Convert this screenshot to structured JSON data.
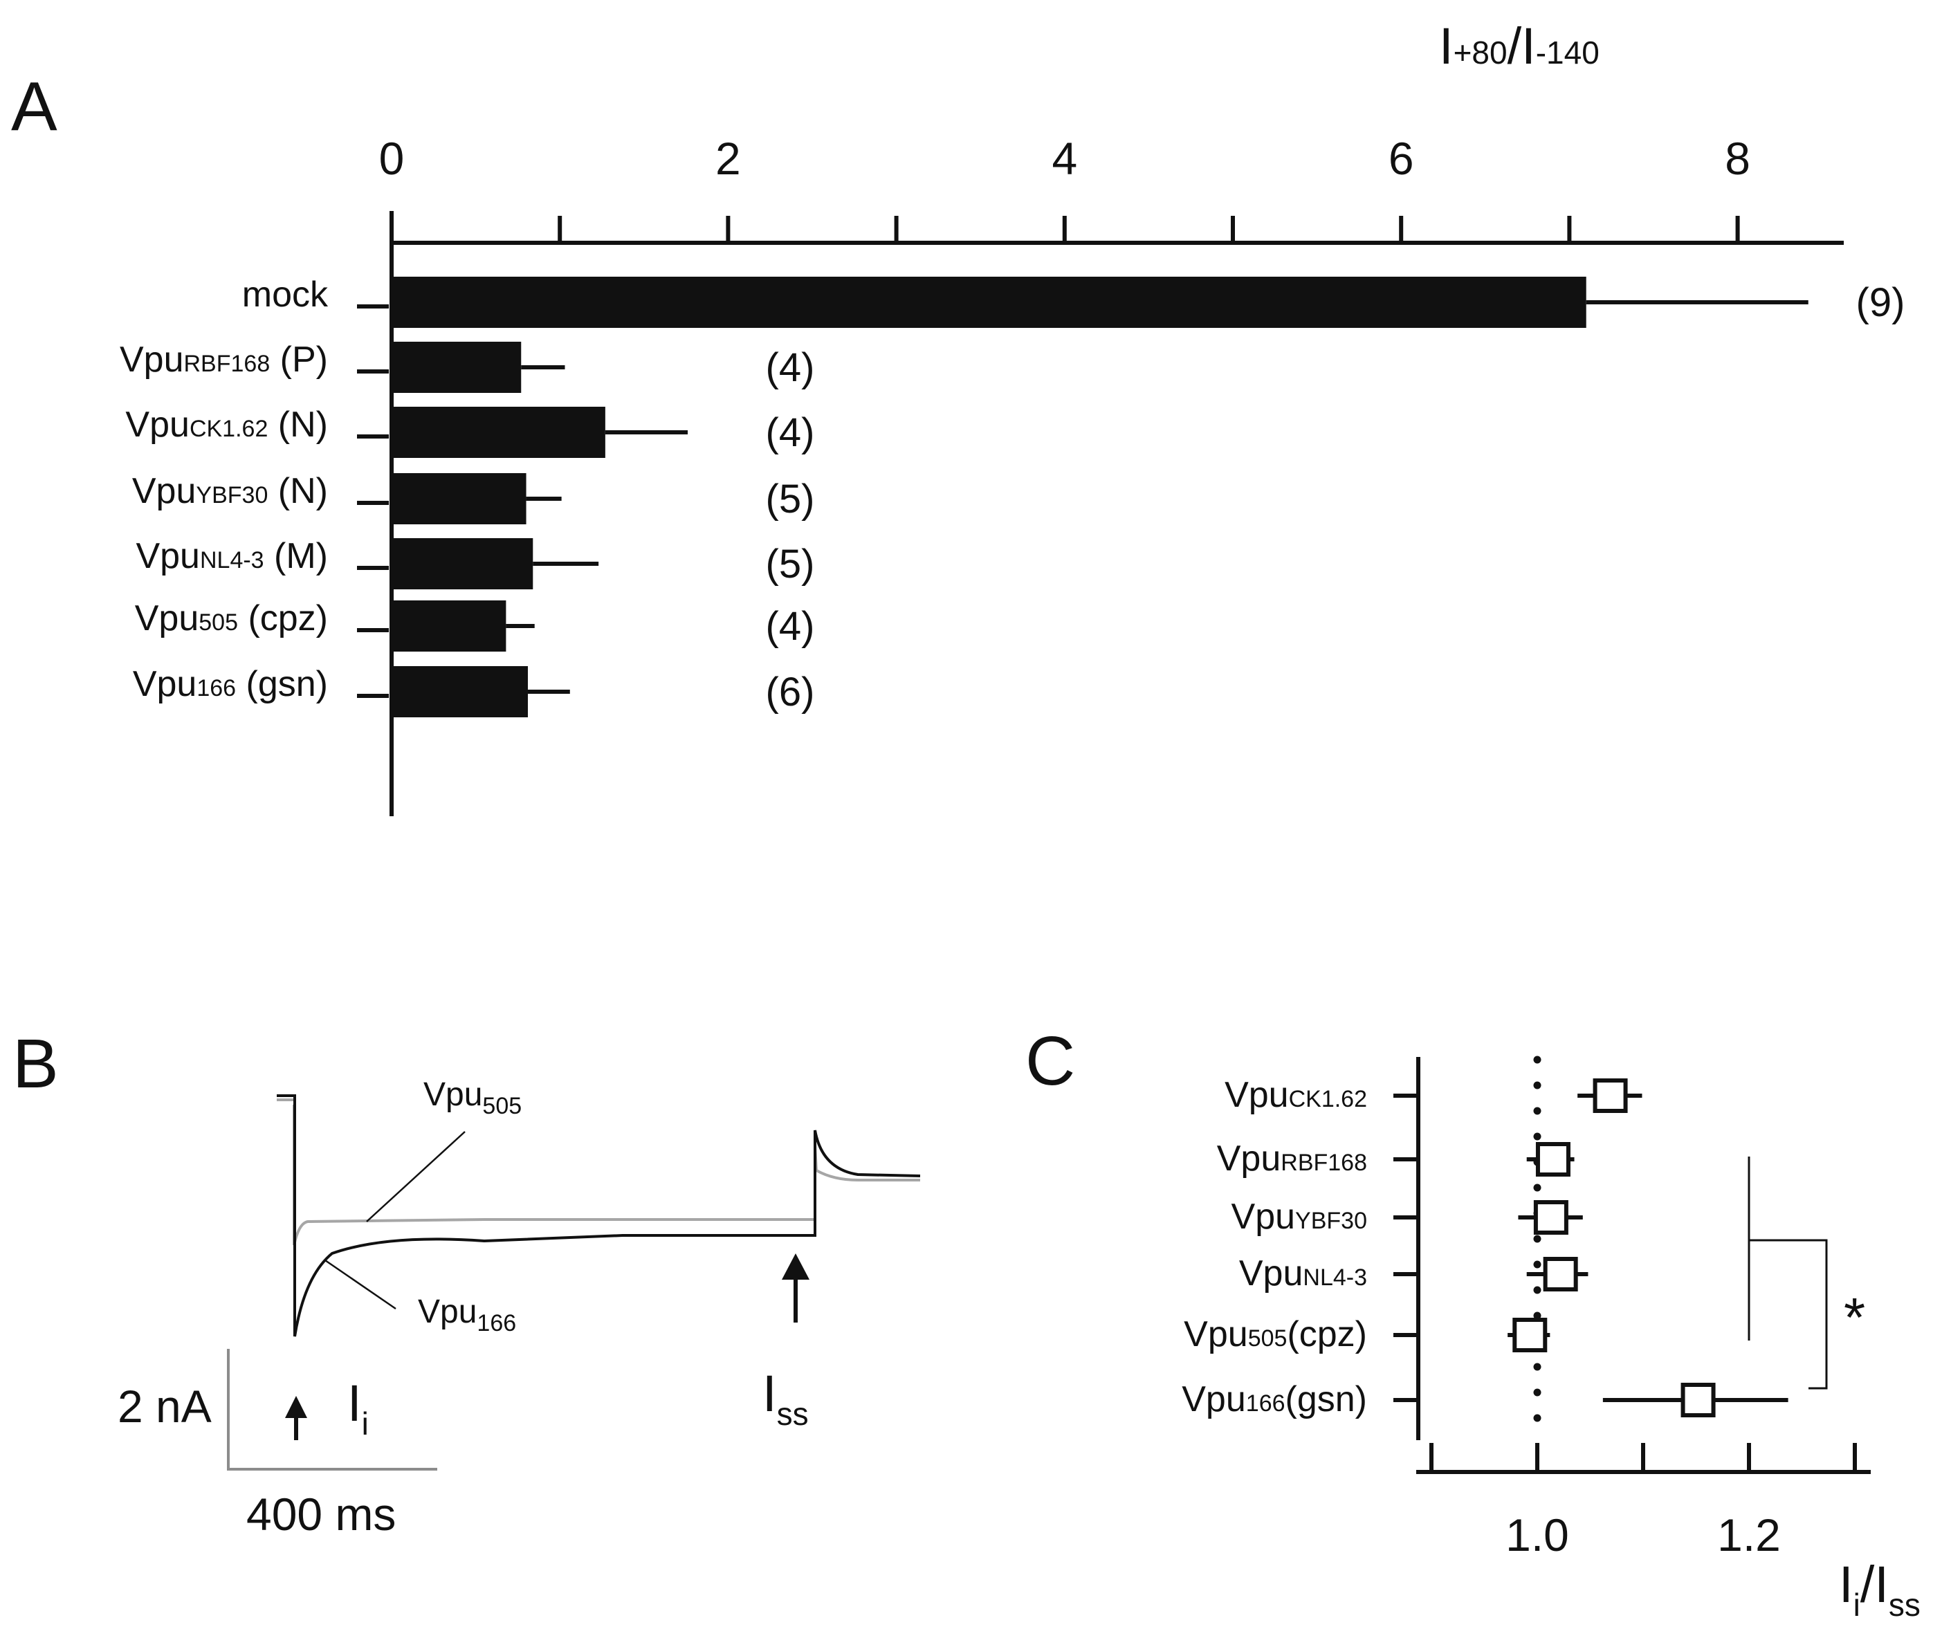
{
  "panels": {
    "A": "A",
    "B": "B",
    "C": "C"
  },
  "colors": {
    "ink": "#111111",
    "grey_trace": "#a6a6a6"
  },
  "chart_data": [
    {
      "panel": "A",
      "type": "bar",
      "orientation": "horizontal",
      "x_axis_position": "top",
      "xlabel": {
        "base": "I",
        "num": "+80",
        "sep": "/I",
        "den": "-140"
      },
      "xlim": [
        0,
        8.5
      ],
      "x_ticks": [
        0,
        1,
        2,
        3,
        4,
        5,
        6,
        7,
        8
      ],
      "x_tick_labels": [
        {
          "value": 0,
          "label": "0"
        },
        {
          "value": 2,
          "label": "2"
        },
        {
          "value": 4,
          "label": "4"
        },
        {
          "value": 6,
          "label": "6"
        },
        {
          "value": 8,
          "label": "8"
        }
      ],
      "categories": [
        {
          "name": "mock",
          "sub": "",
          "group": ""
        },
        {
          "name": "Vpu",
          "sub": "RBF168",
          "group": " (P)"
        },
        {
          "name": "Vpu",
          "sub": "CK1.62",
          "group": " (N)"
        },
        {
          "name": "Vpu",
          "sub": "YBF30",
          "group": " (N)"
        },
        {
          "name": "Vpu",
          "sub": "NL4-3",
          "group": " (M)"
        },
        {
          "name": "Vpu",
          "sub": "505",
          "group": " (cpz)"
        },
        {
          "name": "Vpu",
          "sub": "166",
          "group": " (gsn)"
        }
      ],
      "values": [
        7.1,
        0.77,
        1.27,
        0.8,
        0.84,
        0.68,
        0.81
      ],
      "error_upper": [
        8.42,
        1.03,
        1.76,
        1.01,
        1.23,
        0.85,
        1.06
      ],
      "n_labels": [
        "(9)",
        "(4)",
        "(4)",
        "(5)",
        "(5)",
        "(4)",
        "(6)"
      ],
      "bar_color": "#111111"
    },
    {
      "panel": "B",
      "type": "line",
      "description_free": true,
      "series": [
        {
          "name": "Vpu",
          "sub": "505",
          "color": "#a6a6a6",
          "i_peak": 2.35,
          "i_ss": 2.0
        },
        {
          "name": "Vpu",
          "sub": "166",
          "color": "#111111",
          "i_peak": 6.25,
          "i_ss": 2.0
        }
      ],
      "time_ms": [
        0,
        100,
        200,
        300,
        400,
        600,
        800,
        1000,
        1400,
        1800,
        2000,
        2200,
        2300,
        2400,
        2500
      ],
      "scale_bar": {
        "current": "2 nA",
        "time": "400 ms"
      },
      "markers": [
        {
          "base": "I",
          "sub": "i"
        },
        {
          "base": "I",
          "sub": "ss"
        }
      ]
    },
    {
      "panel": "C",
      "type": "scatter",
      "xlabel": {
        "base": "I",
        "sub1": "i",
        "sep": "/I",
        "sub2": "ss"
      },
      "xlim": [
        0.88,
        1.31
      ],
      "x_ticks": [
        0.9,
        1.0,
        1.1,
        1.2,
        1.3
      ],
      "x_tick_labels": [
        {
          "value": 1.0,
          "label": "1.0"
        },
        {
          "value": 1.2,
          "label": "1.2"
        }
      ],
      "reference_line": 1.0,
      "categories": [
        {
          "name": "Vpu",
          "sub": "CK1.62",
          "group": ""
        },
        {
          "name": "Vpu",
          "sub": "RBF168",
          "group": ""
        },
        {
          "name": "Vpu",
          "sub": "YBF30",
          "group": ""
        },
        {
          "name": "Vpu",
          "sub": "NL4-3",
          "group": ""
        },
        {
          "name": "Vpu",
          "sub": "505",
          "group": "(cpz)"
        },
        {
          "name": "Vpu",
          "sub": "166",
          "group": "(gsn)"
        }
      ],
      "values": [
        1.069,
        1.015,
        1.013,
        1.022,
        0.993,
        1.152
      ],
      "error_low": [
        1.038,
        0.99,
        0.982,
        0.99,
        0.972,
        1.062
      ],
      "error_high": [
        1.099,
        1.035,
        1.043,
        1.048,
        1.012,
        1.237
      ],
      "significance": [
        {
          "between": [
            "Vpu505",
            "Vpu166"
          ],
          "label": "*"
        }
      ]
    }
  ]
}
